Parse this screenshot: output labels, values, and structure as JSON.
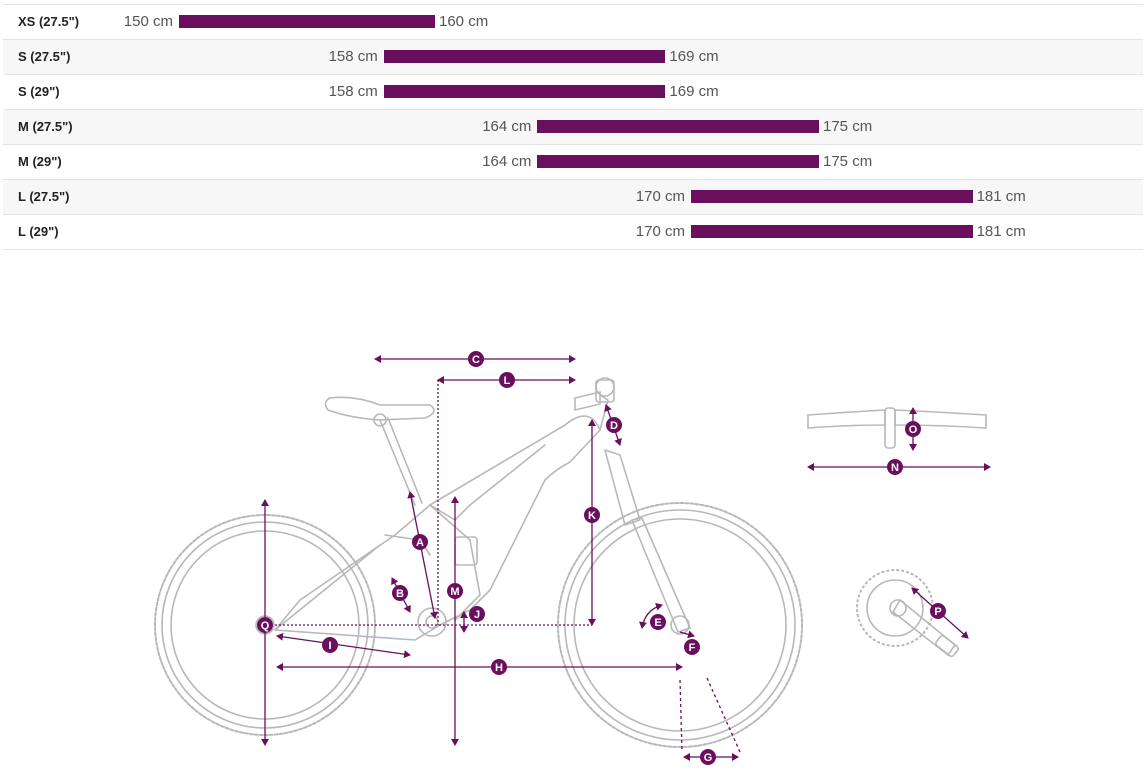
{
  "chart_data": {
    "type": "bar",
    "subtype": "floating-range",
    "orientation": "horizontal",
    "unit": "cm",
    "bar_color": "#6a0f5d",
    "categories": [
      "XS (27.5\")",
      "S (27.5\")",
      "S (29\")",
      "M (27.5\")",
      "M (29\")",
      "L (27.5\")",
      "L (29\")"
    ],
    "ranges": [
      {
        "size": "XS (27.5\")",
        "min": 150,
        "max": 160,
        "min_label": "150 cm",
        "max_label": "160 cm"
      },
      {
        "size": "S (27.5\")",
        "min": 158,
        "max": 169,
        "min_label": "158 cm",
        "max_label": "169 cm"
      },
      {
        "size": "S (29\")",
        "min": 158,
        "max": 169,
        "min_label": "158 cm",
        "max_label": "169 cm"
      },
      {
        "size": "M (27.5\")",
        "min": 164,
        "max": 175,
        "min_label": "164 cm",
        "max_label": "175 cm"
      },
      {
        "size": "M (29\")",
        "min": 164,
        "max": 175,
        "min_label": "164 cm",
        "max_label": "175 cm"
      },
      {
        "size": "L (27.5\")",
        "min": 170,
        "max": 181,
        "min_label": "170 cm",
        "max_label": "181 cm"
      },
      {
        "size": "L (29\")",
        "min": 170,
        "max": 181,
        "min_label": "170 cm",
        "max_label": "181 cm"
      }
    ],
    "xlim": [
      150,
      181
    ],
    "title": "",
    "xlabel": "",
    "ylabel": ""
  },
  "geometry_diagram": {
    "line_color": "#b8b8b8",
    "accent_color": "#6a0f5d",
    "labels": [
      "A",
      "B",
      "C",
      "D",
      "E",
      "F",
      "G",
      "H",
      "I",
      "J",
      "K",
      "L",
      "M",
      "N",
      "O",
      "P",
      "Q"
    ]
  }
}
